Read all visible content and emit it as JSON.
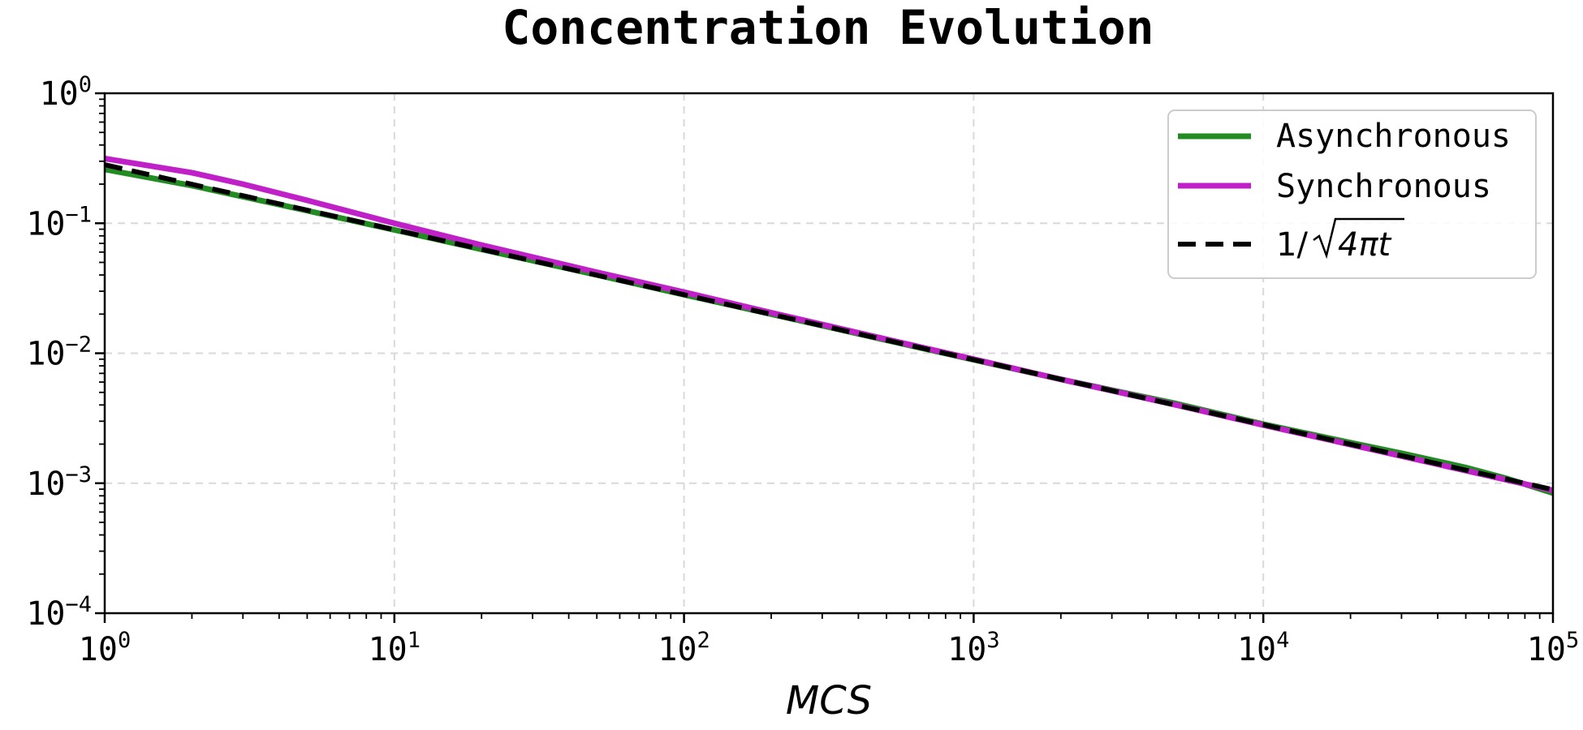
{
  "chart_data": {
    "type": "line",
    "title": "Concentration Evolution",
    "xlabel": "MCS",
    "ylabel": "",
    "xscale": "log",
    "yscale": "log",
    "xlim": [
      1,
      100000
    ],
    "ylim": [
      0.0001,
      1
    ],
    "grid": true,
    "legend_position": "top-right",
    "x_ticks": [
      {
        "value": 1,
        "base": "10",
        "exp": "0"
      },
      {
        "value": 10,
        "base": "10",
        "exp": "1"
      },
      {
        "value": 100,
        "base": "10",
        "exp": "2"
      },
      {
        "value": 1000,
        "base": "10",
        "exp": "3"
      },
      {
        "value": 10000,
        "base": "10",
        "exp": "4"
      },
      {
        "value": 100000,
        "base": "10",
        "exp": "5"
      }
    ],
    "y_ticks": [
      {
        "value": 1,
        "base": "10",
        "exp": "0"
      },
      {
        "value": 0.1,
        "base": "10",
        "exp": "−1"
      },
      {
        "value": 0.01,
        "base": "10",
        "exp": "−2"
      },
      {
        "value": 0.001,
        "base": "10",
        "exp": "−3"
      },
      {
        "value": 0.0001,
        "base": "10",
        "exp": "−4"
      }
    ],
    "series": [
      {
        "name": "Asynchronous",
        "color": "#228B22",
        "style": "solid",
        "x": [
          1,
          2,
          5,
          10,
          20,
          50,
          100,
          200,
          500,
          1000,
          2000,
          5000,
          10000,
          20000,
          30000,
          50000,
          70000,
          100000
        ],
        "y": [
          0.26,
          0.195,
          0.125,
          0.089,
          0.063,
          0.04,
          0.0282,
          0.02,
          0.0126,
          0.0089,
          0.0063,
          0.0041,
          0.00285,
          0.00205,
          0.0017,
          0.00132,
          0.00108,
          0.00084
        ]
      },
      {
        "name": "Synchronous",
        "color": "#C020C8",
        "style": "solid",
        "x": [
          1,
          2,
          3,
          5,
          10,
          20,
          50,
          100,
          200,
          500,
          1000,
          2000,
          5000,
          10000,
          20000,
          50000,
          100000
        ],
        "y": [
          0.315,
          0.245,
          0.2,
          0.15,
          0.1,
          0.068,
          0.042,
          0.0295,
          0.0205,
          0.0128,
          0.009,
          0.0063,
          0.004,
          0.0028,
          0.00198,
          0.00125,
          0.00088
        ]
      },
      {
        "name": "1/√4πt",
        "color": "#000000",
        "style": "dashed",
        "function": "1/sqrt(4*pi*t)",
        "x": [
          1,
          100000
        ],
        "y": [
          0.2821,
          0.000892
        ]
      }
    ],
    "legend": [
      {
        "label": "Asynchronous",
        "color": "#228B22",
        "style": "solid"
      },
      {
        "label": "Synchronous",
        "color": "#C020C8",
        "style": "solid"
      },
      {
        "label_prefix": "1/",
        "label_radicand": "4πt",
        "color": "#000000",
        "style": "dashed"
      }
    ]
  }
}
